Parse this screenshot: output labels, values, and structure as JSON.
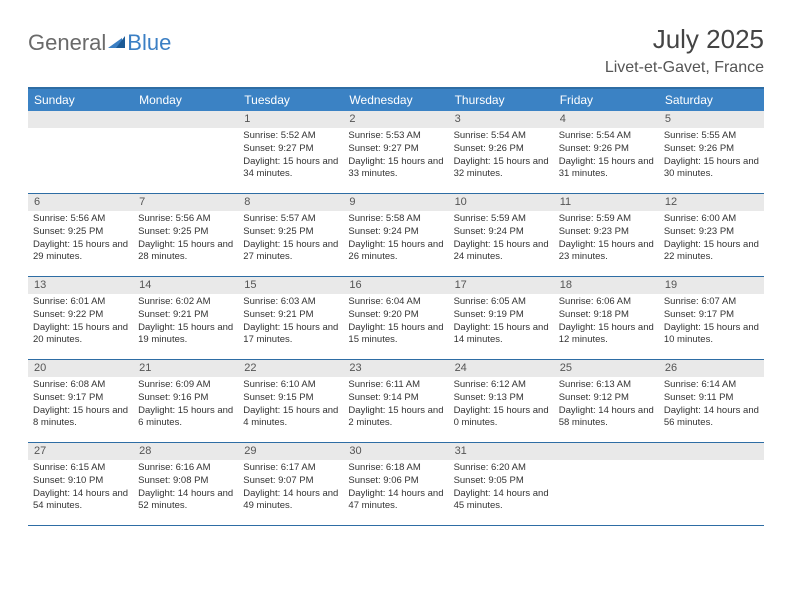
{
  "logo": {
    "text1": "General",
    "text2": "Blue"
  },
  "title": "July 2025",
  "location": "Livet-et-Gavet, France",
  "colors": {
    "header_bg": "#3b82c4",
    "border": "#2e6da4",
    "daynum_bg": "#e9e9e9",
    "logo_gray": "#6a6a6a",
    "logo_blue": "#3b7fc4"
  },
  "day_names": [
    "Sunday",
    "Monday",
    "Tuesday",
    "Wednesday",
    "Thursday",
    "Friday",
    "Saturday"
  ],
  "weeks": [
    [
      {
        "n": "",
        "sr": "",
        "ss": "",
        "dl": ""
      },
      {
        "n": "",
        "sr": "",
        "ss": "",
        "dl": ""
      },
      {
        "n": "1",
        "sr": "Sunrise: 5:52 AM",
        "ss": "Sunset: 9:27 PM",
        "dl": "Daylight: 15 hours and 34 minutes."
      },
      {
        "n": "2",
        "sr": "Sunrise: 5:53 AM",
        "ss": "Sunset: 9:27 PM",
        "dl": "Daylight: 15 hours and 33 minutes."
      },
      {
        "n": "3",
        "sr": "Sunrise: 5:54 AM",
        "ss": "Sunset: 9:26 PM",
        "dl": "Daylight: 15 hours and 32 minutes."
      },
      {
        "n": "4",
        "sr": "Sunrise: 5:54 AM",
        "ss": "Sunset: 9:26 PM",
        "dl": "Daylight: 15 hours and 31 minutes."
      },
      {
        "n": "5",
        "sr": "Sunrise: 5:55 AM",
        "ss": "Sunset: 9:26 PM",
        "dl": "Daylight: 15 hours and 30 minutes."
      }
    ],
    [
      {
        "n": "6",
        "sr": "Sunrise: 5:56 AM",
        "ss": "Sunset: 9:25 PM",
        "dl": "Daylight: 15 hours and 29 minutes."
      },
      {
        "n": "7",
        "sr": "Sunrise: 5:56 AM",
        "ss": "Sunset: 9:25 PM",
        "dl": "Daylight: 15 hours and 28 minutes."
      },
      {
        "n": "8",
        "sr": "Sunrise: 5:57 AM",
        "ss": "Sunset: 9:25 PM",
        "dl": "Daylight: 15 hours and 27 minutes."
      },
      {
        "n": "9",
        "sr": "Sunrise: 5:58 AM",
        "ss": "Sunset: 9:24 PM",
        "dl": "Daylight: 15 hours and 26 minutes."
      },
      {
        "n": "10",
        "sr": "Sunrise: 5:59 AM",
        "ss": "Sunset: 9:24 PM",
        "dl": "Daylight: 15 hours and 24 minutes."
      },
      {
        "n": "11",
        "sr": "Sunrise: 5:59 AM",
        "ss": "Sunset: 9:23 PM",
        "dl": "Daylight: 15 hours and 23 minutes."
      },
      {
        "n": "12",
        "sr": "Sunrise: 6:00 AM",
        "ss": "Sunset: 9:23 PM",
        "dl": "Daylight: 15 hours and 22 minutes."
      }
    ],
    [
      {
        "n": "13",
        "sr": "Sunrise: 6:01 AM",
        "ss": "Sunset: 9:22 PM",
        "dl": "Daylight: 15 hours and 20 minutes."
      },
      {
        "n": "14",
        "sr": "Sunrise: 6:02 AM",
        "ss": "Sunset: 9:21 PM",
        "dl": "Daylight: 15 hours and 19 minutes."
      },
      {
        "n": "15",
        "sr": "Sunrise: 6:03 AM",
        "ss": "Sunset: 9:21 PM",
        "dl": "Daylight: 15 hours and 17 minutes."
      },
      {
        "n": "16",
        "sr": "Sunrise: 6:04 AM",
        "ss": "Sunset: 9:20 PM",
        "dl": "Daylight: 15 hours and 15 minutes."
      },
      {
        "n": "17",
        "sr": "Sunrise: 6:05 AM",
        "ss": "Sunset: 9:19 PM",
        "dl": "Daylight: 15 hours and 14 minutes."
      },
      {
        "n": "18",
        "sr": "Sunrise: 6:06 AM",
        "ss": "Sunset: 9:18 PM",
        "dl": "Daylight: 15 hours and 12 minutes."
      },
      {
        "n": "19",
        "sr": "Sunrise: 6:07 AM",
        "ss": "Sunset: 9:17 PM",
        "dl": "Daylight: 15 hours and 10 minutes."
      }
    ],
    [
      {
        "n": "20",
        "sr": "Sunrise: 6:08 AM",
        "ss": "Sunset: 9:17 PM",
        "dl": "Daylight: 15 hours and 8 minutes."
      },
      {
        "n": "21",
        "sr": "Sunrise: 6:09 AM",
        "ss": "Sunset: 9:16 PM",
        "dl": "Daylight: 15 hours and 6 minutes."
      },
      {
        "n": "22",
        "sr": "Sunrise: 6:10 AM",
        "ss": "Sunset: 9:15 PM",
        "dl": "Daylight: 15 hours and 4 minutes."
      },
      {
        "n": "23",
        "sr": "Sunrise: 6:11 AM",
        "ss": "Sunset: 9:14 PM",
        "dl": "Daylight: 15 hours and 2 minutes."
      },
      {
        "n": "24",
        "sr": "Sunrise: 6:12 AM",
        "ss": "Sunset: 9:13 PM",
        "dl": "Daylight: 15 hours and 0 minutes."
      },
      {
        "n": "25",
        "sr": "Sunrise: 6:13 AM",
        "ss": "Sunset: 9:12 PM",
        "dl": "Daylight: 14 hours and 58 minutes."
      },
      {
        "n": "26",
        "sr": "Sunrise: 6:14 AM",
        "ss": "Sunset: 9:11 PM",
        "dl": "Daylight: 14 hours and 56 minutes."
      }
    ],
    [
      {
        "n": "27",
        "sr": "Sunrise: 6:15 AM",
        "ss": "Sunset: 9:10 PM",
        "dl": "Daylight: 14 hours and 54 minutes."
      },
      {
        "n": "28",
        "sr": "Sunrise: 6:16 AM",
        "ss": "Sunset: 9:08 PM",
        "dl": "Daylight: 14 hours and 52 minutes."
      },
      {
        "n": "29",
        "sr": "Sunrise: 6:17 AM",
        "ss": "Sunset: 9:07 PM",
        "dl": "Daylight: 14 hours and 49 minutes."
      },
      {
        "n": "30",
        "sr": "Sunrise: 6:18 AM",
        "ss": "Sunset: 9:06 PM",
        "dl": "Daylight: 14 hours and 47 minutes."
      },
      {
        "n": "31",
        "sr": "Sunrise: 6:20 AM",
        "ss": "Sunset: 9:05 PM",
        "dl": "Daylight: 14 hours and 45 minutes."
      },
      {
        "n": "",
        "sr": "",
        "ss": "",
        "dl": ""
      },
      {
        "n": "",
        "sr": "",
        "ss": "",
        "dl": ""
      }
    ]
  ]
}
